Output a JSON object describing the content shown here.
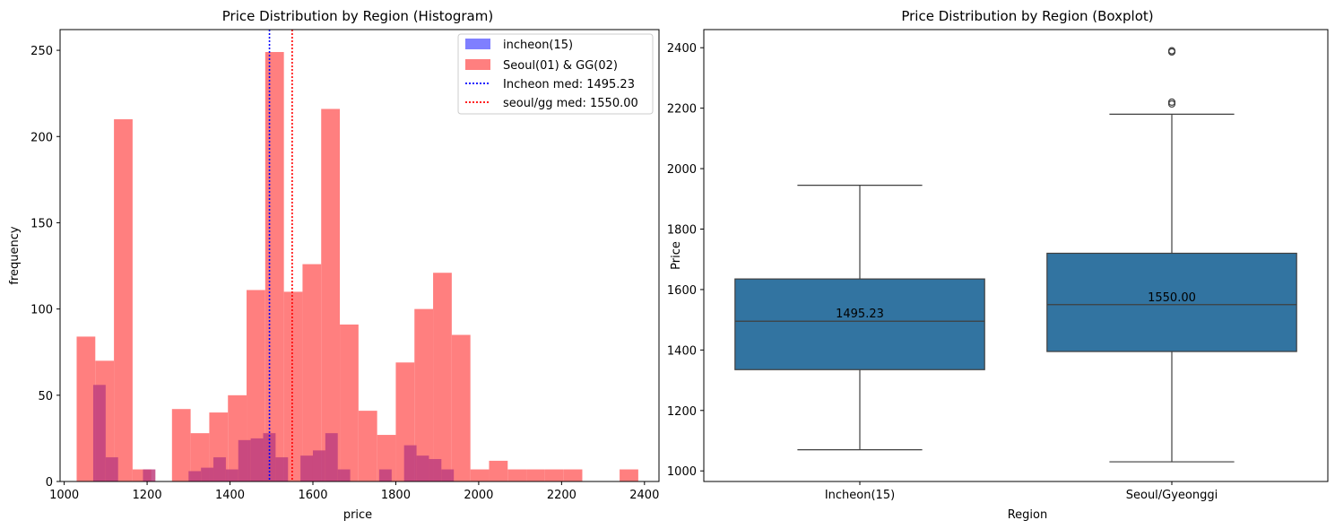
{
  "chart_data": [
    {
      "type": "histogram",
      "title": "Price Distribution by Region (Histogram)",
      "xlabel": "price",
      "ylabel": "frequency",
      "xlim": [
        990,
        2435
      ],
      "ylim": [
        0,
        262
      ],
      "xticks": [
        1000,
        1200,
        1400,
        1600,
        1800,
        2000,
        2200,
        2400
      ],
      "yticks": [
        0,
        50,
        100,
        150,
        200,
        250
      ],
      "legend_position": "top-right",
      "colors": {
        "incheon": "#7f7fff",
        "seoul": "#ff7f7f",
        "overlap": "#bf3f7f",
        "incheon_median": "#0000ff",
        "seoul_median": "#ff0000"
      },
      "series": [
        {
          "name": "incheon(15)",
          "bins": [
            [
              1070,
              1100,
              56
            ],
            [
              1100,
              1130,
              14
            ],
            [
              1190,
              1220,
              7
            ],
            [
              1300,
              1330,
              6
            ],
            [
              1330,
              1360,
              8
            ],
            [
              1360,
              1390,
              14
            ],
            [
              1390,
              1420,
              7
            ],
            [
              1420,
              1450,
              24
            ],
            [
              1450,
              1480,
              25
            ],
            [
              1480,
              1510,
              28
            ],
            [
              1510,
              1540,
              14
            ],
            [
              1570,
              1600,
              15
            ],
            [
              1600,
              1630,
              18
            ],
            [
              1630,
              1660,
              28
            ],
            [
              1660,
              1690,
              7
            ],
            [
              1760,
              1790,
              7
            ],
            [
              1820,
              1850,
              21
            ],
            [
              1850,
              1880,
              15
            ],
            [
              1880,
              1910,
              13
            ],
            [
              1910,
              1940,
              7
            ]
          ]
        },
        {
          "name": "Seoul(01) & GG(02)",
          "bins": [
            [
              1030,
              1075,
              84
            ],
            [
              1075,
              1120,
              70
            ],
            [
              1120,
              1165,
              210
            ],
            [
              1165,
              1210,
              7
            ],
            [
              1260,
              1305,
              42
            ],
            [
              1305,
              1350,
              28
            ],
            [
              1350,
              1395,
              40
            ],
            [
              1395,
              1440,
              50
            ],
            [
              1440,
              1485,
              111
            ],
            [
              1485,
              1530,
              249
            ],
            [
              1530,
              1575,
              110
            ],
            [
              1575,
              1620,
              126
            ],
            [
              1620,
              1665,
              216
            ],
            [
              1665,
              1710,
              91
            ],
            [
              1710,
              1755,
              41
            ],
            [
              1755,
              1800,
              27
            ],
            [
              1800,
              1845,
              69
            ],
            [
              1845,
              1890,
              100
            ],
            [
              1890,
              1935,
              121
            ],
            [
              1935,
              1980,
              85
            ],
            [
              1980,
              2025,
              7
            ],
            [
              2025,
              2070,
              12
            ],
            [
              2070,
              2115,
              7
            ],
            [
              2115,
              2160,
              7
            ],
            [
              2160,
              2205,
              7
            ],
            [
              2205,
              2250,
              7
            ],
            [
              2340,
              2385,
              7
            ]
          ]
        }
      ],
      "medians": [
        {
          "name": "Incheon med: 1495.23",
          "value": 1495.23
        },
        {
          "name": "seoul/gg med: 1550.00",
          "value": 1550.0
        }
      ]
    },
    {
      "type": "boxplot",
      "title": "Price Distribution by Region (Boxplot)",
      "xlabel": "Region",
      "ylabel": "Price",
      "ylim": [
        965,
        2460
      ],
      "yticks": [
        1000,
        1200,
        1400,
        1600,
        1800,
        2000,
        2200,
        2400
      ],
      "color": "#3274a1",
      "categories": [
        "Incheon(15)",
        "Seoul/Gyeonggi"
      ],
      "boxes": [
        {
          "category": "Incheon(15)",
          "whisker_low": 1070,
          "q1": 1335,
          "median": 1495.23,
          "q3": 1635,
          "whisker_high": 1945,
          "outliers": [],
          "label": "1495.23"
        },
        {
          "category": "Seoul/Gyeonggi",
          "whisker_low": 1030,
          "q1": 1395,
          "median": 1550.0,
          "q3": 1720,
          "whisker_high": 2180,
          "outliers": [
            2214,
            2220,
            2386,
            2390
          ],
          "label": "1550.00"
        }
      ]
    }
  ]
}
